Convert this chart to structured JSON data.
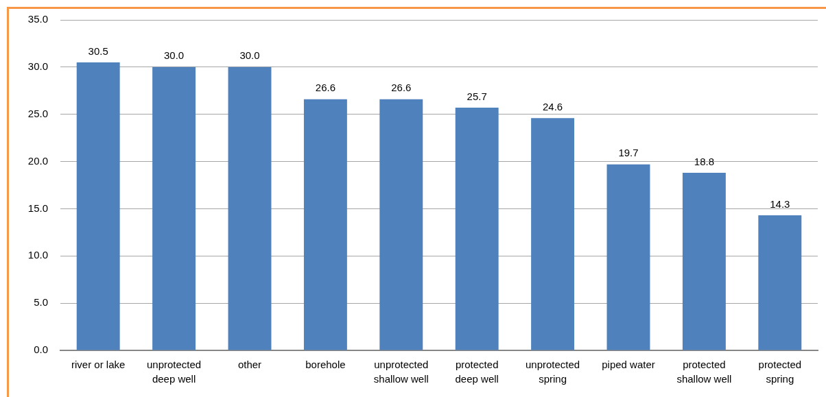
{
  "chart_data": {
    "type": "bar",
    "categories": [
      "river or lake",
      "unprotected deep well",
      "other",
      "borehole",
      "unprotected shallow well",
      "protected deep well",
      "unprotected spring",
      "piped water",
      "protected shallow well",
      "protected spring"
    ],
    "values": [
      30.5,
      30,
      30,
      26.6,
      26.6,
      25.7,
      24.6,
      19.7,
      18.8,
      14.3
    ],
    "value_labels": [
      "30.5",
      "30.0",
      "30.0",
      "26.6",
      "26.6",
      "25.7",
      "24.6",
      "19.7",
      "18.8",
      "14.3"
    ],
    "color": "#4f81bd",
    "ylim": [
      0,
      35
    ],
    "yticks": [
      {
        "value": 0,
        "label": "0.0"
      },
      {
        "value": 5,
        "label": "5.0"
      },
      {
        "value": 10,
        "label": "10.0"
      },
      {
        "value": 15,
        "label": "15.0"
      },
      {
        "value": 20,
        "label": "20.0"
      },
      {
        "value": 25,
        "label": "25.0"
      },
      {
        "value": 30,
        "label": "30.0"
      },
      {
        "value": 35,
        "label": "35.0"
      }
    ],
    "grid": "y",
    "legend": false
  }
}
